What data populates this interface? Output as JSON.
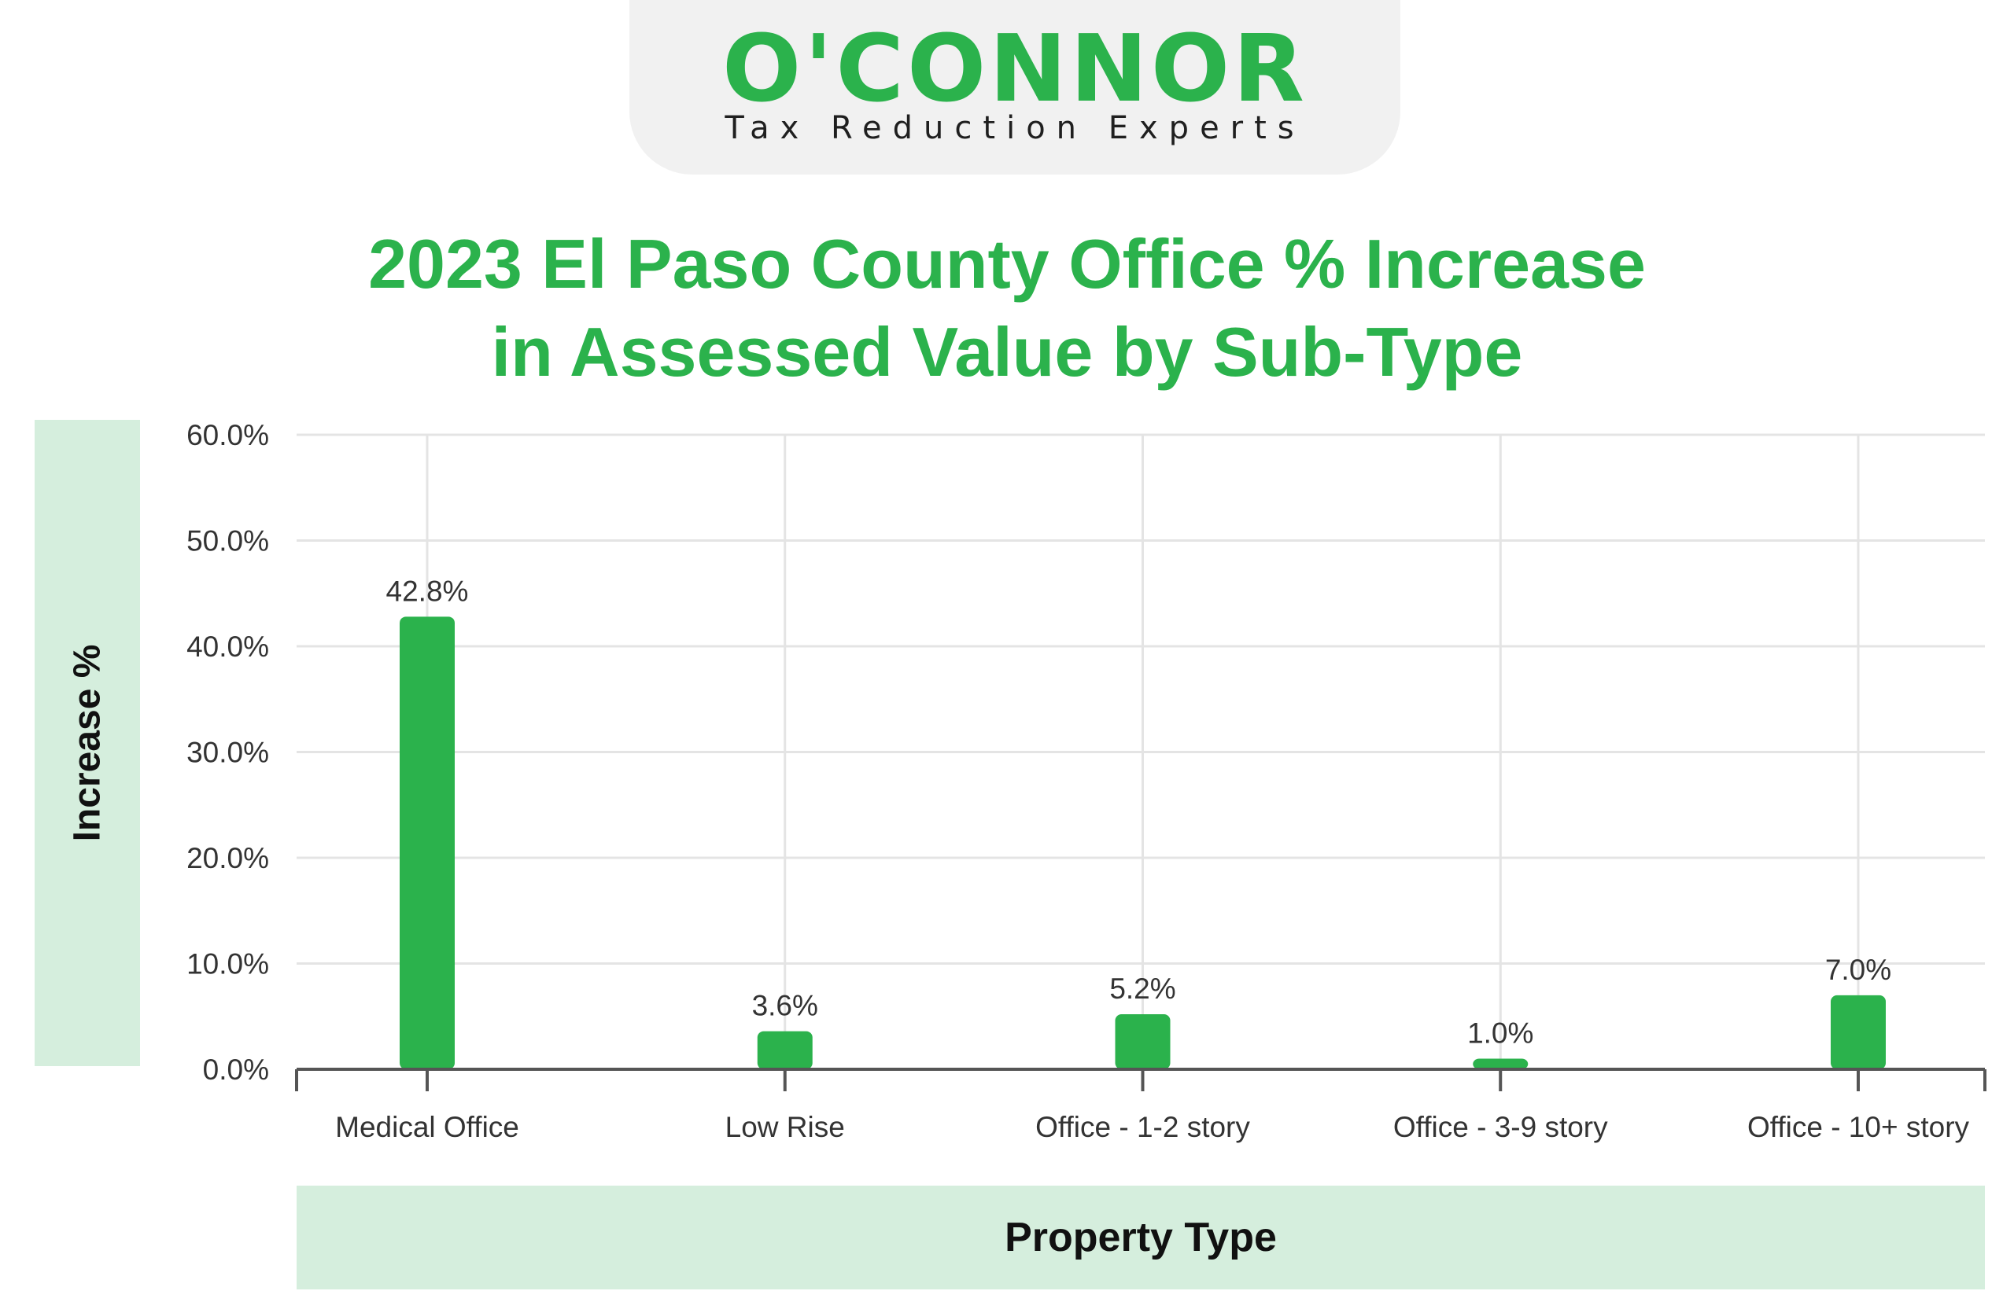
{
  "logo": {
    "wordmark": "O'CONNOR",
    "tagline": "Tax Reduction Experts"
  },
  "colors": {
    "bar": "#2bb24c",
    "accent": "#2bb24c",
    "label_box": "#d5eedd"
  },
  "chart_data": {
    "type": "bar",
    "title_line1": "2023 El Paso County Office % Increase",
    "title_line2": "in Assessed Value by Sub-Type",
    "xlabel": "Property Type",
    "ylabel": "Increase %",
    "categories": [
      "Medical Office",
      "Low Rise",
      "Office - 1-2 story",
      "Office - 3-9 story",
      "Office - 10+ story"
    ],
    "values": [
      42.8,
      3.6,
      5.2,
      1.0,
      7.0
    ],
    "value_labels": [
      "42.8%",
      "3.6%",
      "5.2%",
      "1.0%",
      "7.0%"
    ],
    "y_ticks": [
      "0.0%",
      "10.0%",
      "20.0%",
      "30.0%",
      "40.0%",
      "50.0%",
      "60.0%"
    ],
    "ylim": [
      0,
      60
    ],
    "grid": true,
    "legend": "none"
  }
}
